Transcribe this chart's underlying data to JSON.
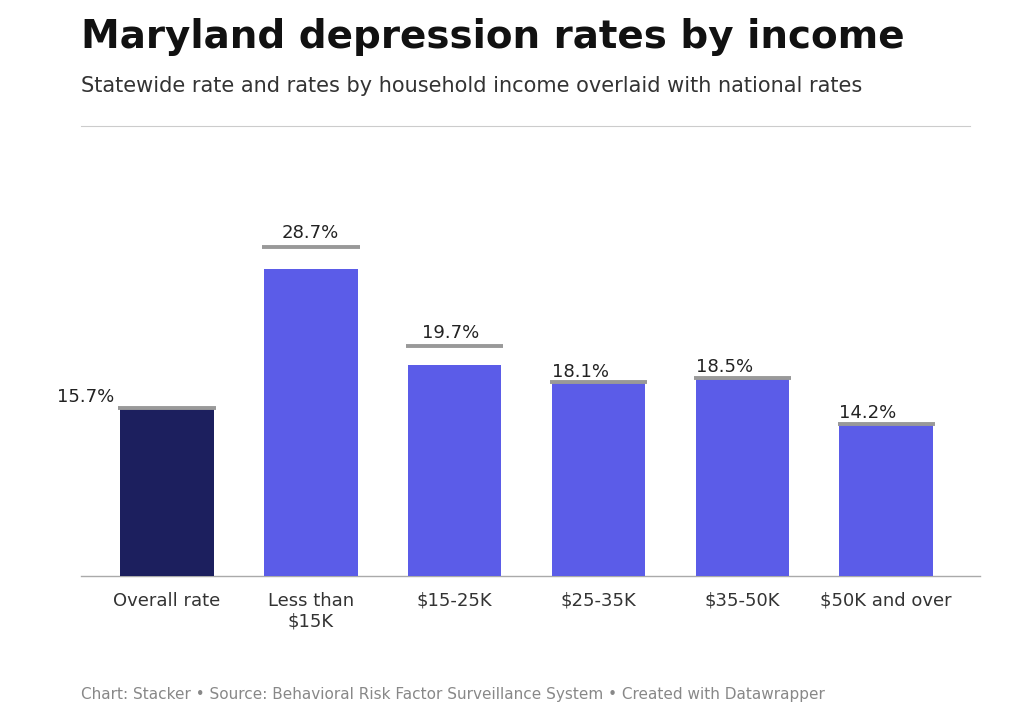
{
  "title": "Maryland depression rates by income",
  "subtitle": "Statewide rate and rates by household income overlaid with national rates",
  "caption": "Chart: Stacker • Source: Behavioral Risk Factor Surveillance System • Created with Datawrapper",
  "categories": [
    "Overall rate",
    "Less than\n$15K",
    "$15-25K",
    "$25-35K",
    "$35-50K",
    "$50K and over"
  ],
  "values": [
    15.7,
    28.7,
    19.7,
    18.1,
    18.5,
    14.2
  ],
  "bar_colors": [
    "#1c1f5e",
    "#5b5ce8",
    "#5b5ce8",
    "#5b5ce8",
    "#5b5ce8",
    "#5b5ce8"
  ],
  "national_line_color": "#999999",
  "national_line_y": [
    15.7,
    30.8,
    21.5,
    18.1,
    18.5,
    14.2
  ],
  "value_labels": [
    "15.7%",
    "28.7%",
    "19.7%",
    "18.1%",
    "18.5%",
    "14.2%"
  ],
  "ylim": [
    0,
    35
  ],
  "background_color": "#ffffff",
  "title_fontsize": 28,
  "subtitle_fontsize": 15,
  "caption_fontsize": 11,
  "bar_width": 0.65
}
